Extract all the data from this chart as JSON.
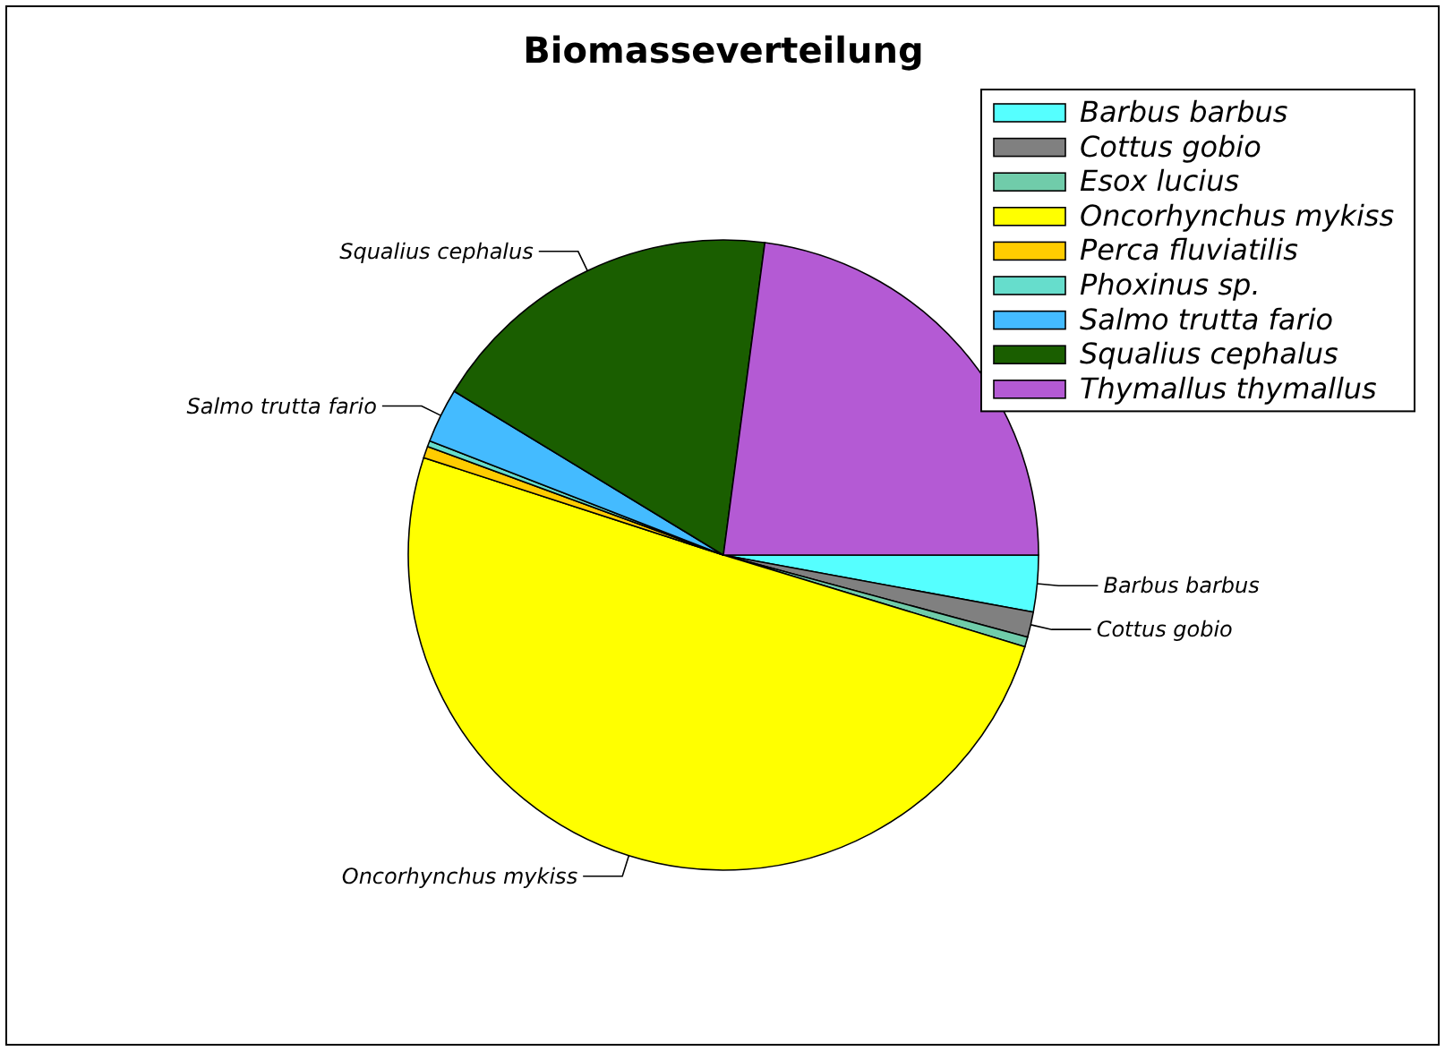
{
  "chart_data": {
    "type": "pie",
    "title": "Biomasseverteilung",
    "categories": [
      "Barbus barbus",
      "Cottus gobio",
      "Esox lucius",
      "Oncorhynchus mykiss",
      "Perca fluviatilis",
      "Phoxinus sp.",
      "Salmo trutta fario",
      "Squalius cephalus",
      "Thymallus thymallus"
    ],
    "values": [
      2.9,
      1.3,
      0.5,
      50.3,
      0.6,
      0.3,
      2.8,
      18.4,
      22.9
    ],
    "colors": [
      "#55ffff",
      "#808080",
      "#70ccaa",
      "#ffff00",
      "#ffcc00",
      "#66ddcc",
      "#44bbff",
      "#1a5e00",
      "#b45ad4"
    ],
    "legend": "top right",
    "annotations": [
      {
        "text": "Barbus barbus",
        "x": "Barbus barbus"
      },
      {
        "text": "Cottus gobio",
        "x": "Cottus gobio"
      },
      {
        "text": "Oncorhynchus mykiss",
        "x": "Oncorhynchus mykiss"
      },
      {
        "text": "Salmo trutta fario",
        "x": "Salmo trutta fario"
      },
      {
        "text": "Squalius cephalus",
        "x": "Squalius cephalus"
      }
    ]
  }
}
